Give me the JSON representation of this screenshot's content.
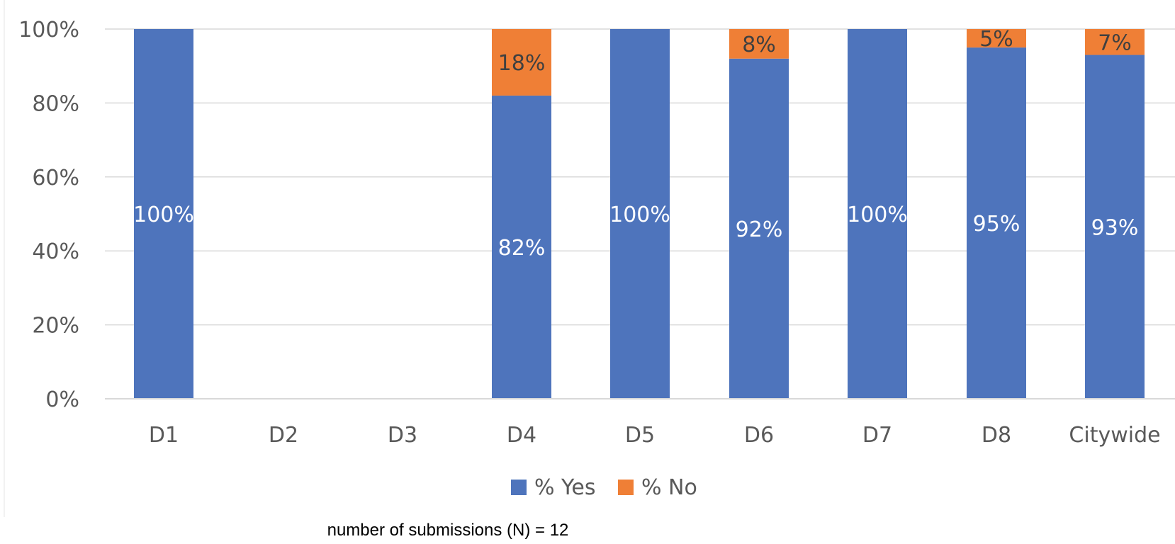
{
  "chart_data": {
    "type": "bar",
    "stacked": true,
    "title": "",
    "categories": [
      "D1",
      "D2",
      "D3",
      "D4",
      "D5",
      "D6",
      "D7",
      "D8",
      "Citywide"
    ],
    "series": [
      {
        "name": "% Yes",
        "color": "#4e74bc",
        "values": [
          100,
          null,
          null,
          82,
          100,
          92,
          100,
          95,
          93
        ],
        "labels": [
          "100%",
          "",
          "",
          "82%",
          "100%",
          "92%",
          "100%",
          "95%",
          "93%"
        ]
      },
      {
        "name": "% No",
        "color": "#ef7f36",
        "values": [
          0,
          null,
          null,
          18,
          0,
          8,
          0,
          5,
          7
        ],
        "labels": [
          "",
          "",
          "",
          "18%",
          "",
          "8%",
          "",
          "5%",
          "7%"
        ]
      }
    ],
    "yaxis": {
      "min": 0,
      "max": 100,
      "ticks": [
        0,
        20,
        40,
        60,
        80,
        100
      ],
      "tick_labels": [
        "0%",
        "20%",
        "40%",
        "60%",
        "80%",
        "100%"
      ]
    },
    "xlabel": "",
    "ylabel": "",
    "grid": true,
    "legend_position": "bottom",
    "note": "number of submissions (N) = 12"
  }
}
